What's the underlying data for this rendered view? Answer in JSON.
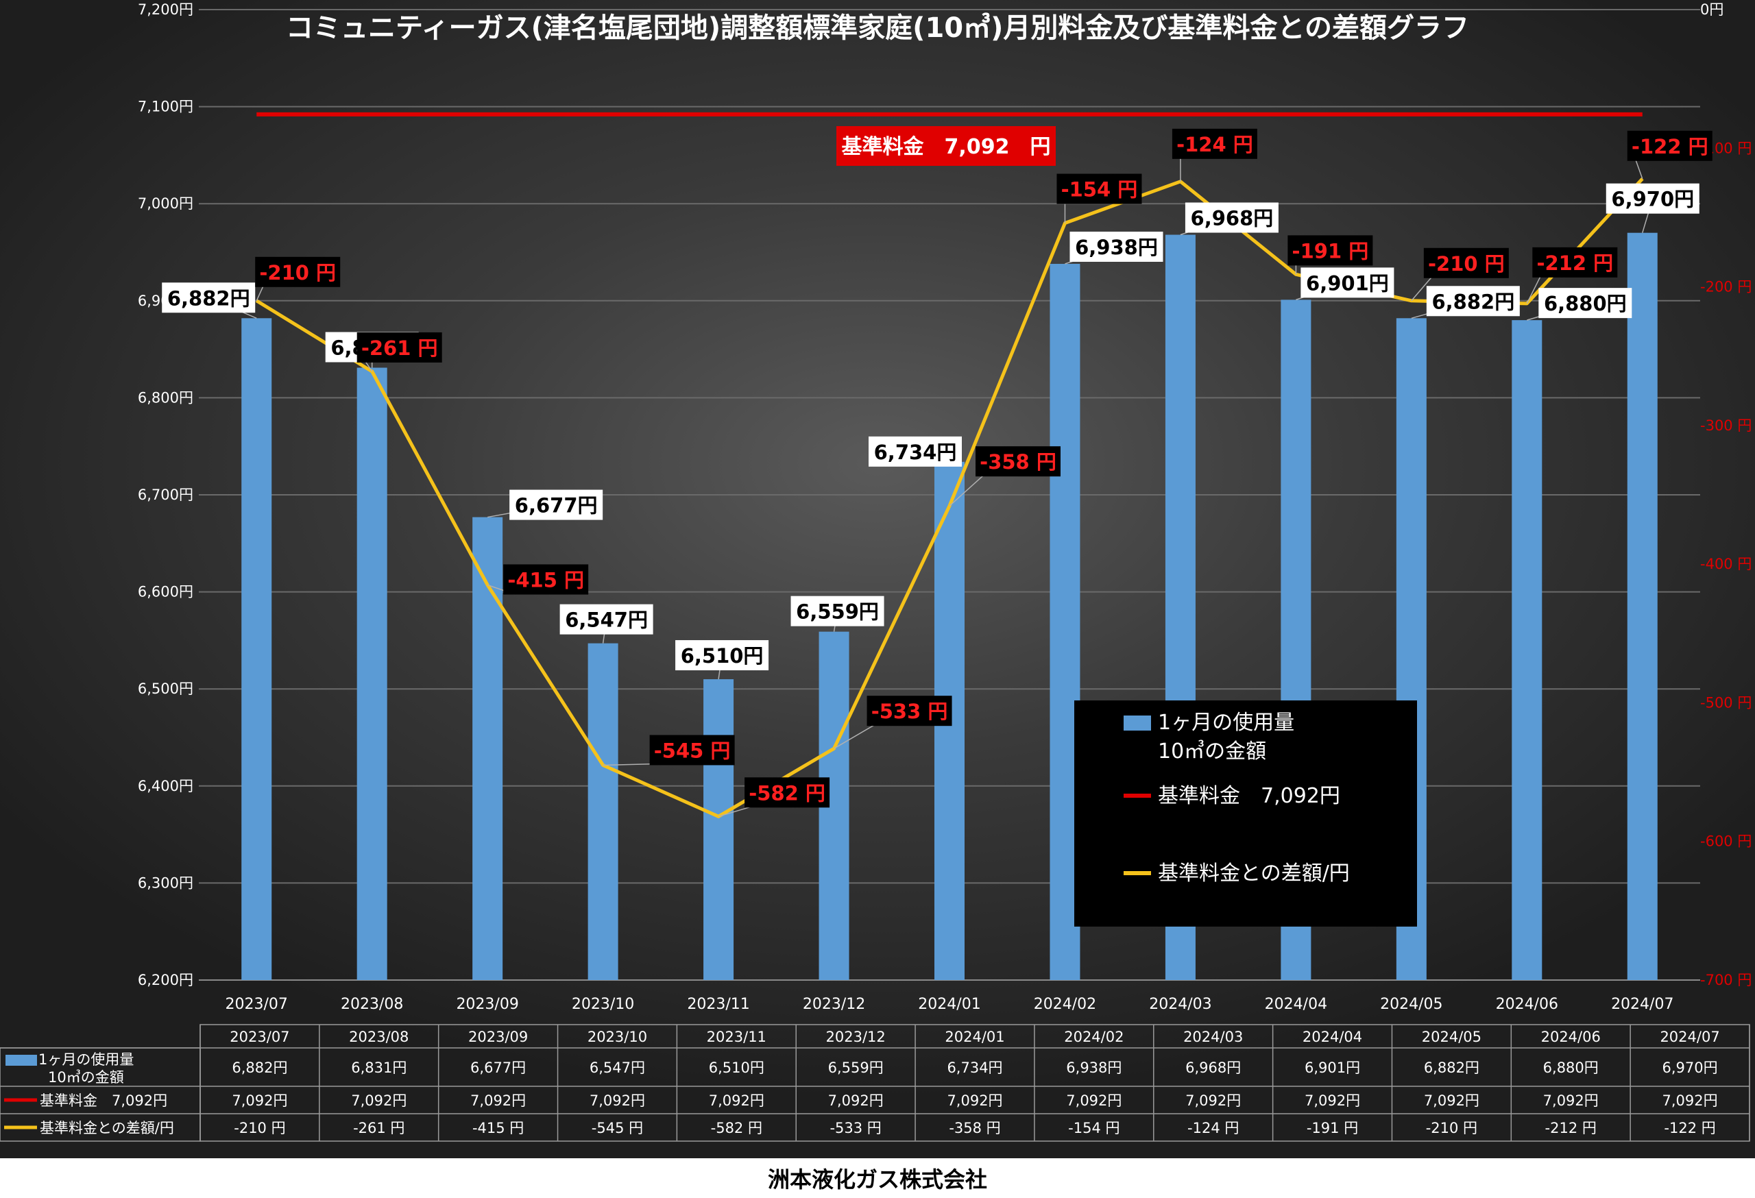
{
  "chart_data": {
    "type": "bar",
    "title": "コミュニティーガス(津名塩尾団地)調整額標準家庭(10㎥)月別料金及び基準料金との差額グラフ",
    "categories": [
      "2023/07",
      "2023/08",
      "2023/09",
      "2023/10",
      "2023/11",
      "2023/12",
      "2024/01",
      "2024/02",
      "2024/03",
      "2024/04",
      "2024/05",
      "2024/06",
      "2024/07"
    ],
    "left_axis": {
      "ylim": [
        6200,
        7200
      ],
      "ticks": [
        "6,200円",
        "6,300円",
        "6,400円",
        "6,500円",
        "6,600円",
        "6,700円",
        "6,800円",
        "6,900円",
        "7,000円",
        "7,100円",
        "7,200円"
      ]
    },
    "right_axis": {
      "ylim": [
        -700,
        0
      ],
      "ticks": [
        "-700 円",
        "-600 円",
        "-500 円",
        "-400 円",
        "-300 円",
        "-200 円",
        "-100 円",
        "0円"
      ]
    },
    "grid": true,
    "series": [
      {
        "name": "1ヶ月の使用量 10㎥の金額",
        "kind": "bar",
        "axis": "left",
        "color": "#5b9bd5",
        "values": [
          6882,
          6831,
          6677,
          6547,
          6510,
          6559,
          6734,
          6938,
          6968,
          6901,
          6882,
          6880,
          6970
        ],
        "labels": [
          "6,882円",
          "6,831円",
          "6,677円",
          "6,547円",
          "6,510円",
          "6,559円",
          "6,734円",
          "6,938円",
          "6,968円",
          "6,901円",
          "6,882円",
          "6,880円",
          "6,970円"
        ]
      },
      {
        "name": "基準料金　7,092円",
        "kind": "line",
        "axis": "left",
        "color": "#e00000",
        "values": [
          7092,
          7092,
          7092,
          7092,
          7092,
          7092,
          7092,
          7092,
          7092,
          7092,
          7092,
          7092,
          7092
        ],
        "labels": [
          "7,092円",
          "7,092円",
          "7,092円",
          "7,092円",
          "7,092円",
          "7,092円",
          "7,092円",
          "7,092円",
          "7,092円",
          "7,092円",
          "7,092円",
          "7,092円",
          "7,092円"
        ]
      },
      {
        "name": "基準料金との差額/円",
        "kind": "line",
        "axis": "right",
        "color": "#f5c21b",
        "values": [
          -210,
          -261,
          -415,
          -545,
          -582,
          -533,
          -358,
          -154,
          -124,
          -191,
          -210,
          -212,
          -122
        ],
        "labels": [
          "-210 円",
          "-261 円",
          "-415 円",
          "-545 円",
          "-582 円",
          "-533 円",
          "-358 円",
          "-154 円",
          "-124 円",
          "-191 円",
          "-210 円",
          "-212 円",
          "-122 円"
        ]
      }
    ],
    "reference_label": "基準料金　7,092　円",
    "legend": {
      "placement": "center-right",
      "items": [
        {
          "text_lines": [
            "1ヶ月の使用量",
            "10㎥の金額"
          ],
          "color": "#5b9bd5",
          "shape": "bar"
        },
        {
          "text_lines": [
            "基準料金　7,092円"
          ],
          "color": "#e00000",
          "shape": "line"
        },
        {
          "text_lines": [
            "基準料金との差額/円"
          ],
          "color": "#f5c21b",
          "shape": "line"
        }
      ]
    },
    "table": {
      "row_headers": [
        {
          "lines": [
            "1ヶ月の使用量",
            "10㎥の金額"
          ],
          "color": "#5b9bd5",
          "shape": "bar"
        },
        {
          "lines": [
            "基準料金　7,092円"
          ],
          "color": "#e00000",
          "shape": "line"
        },
        {
          "lines": [
            "基準料金との差額/円"
          ],
          "color": "#f5c21b",
          "shape": "line"
        }
      ]
    }
  },
  "footer": {
    "company": "洲本液化ガス株式会社"
  }
}
